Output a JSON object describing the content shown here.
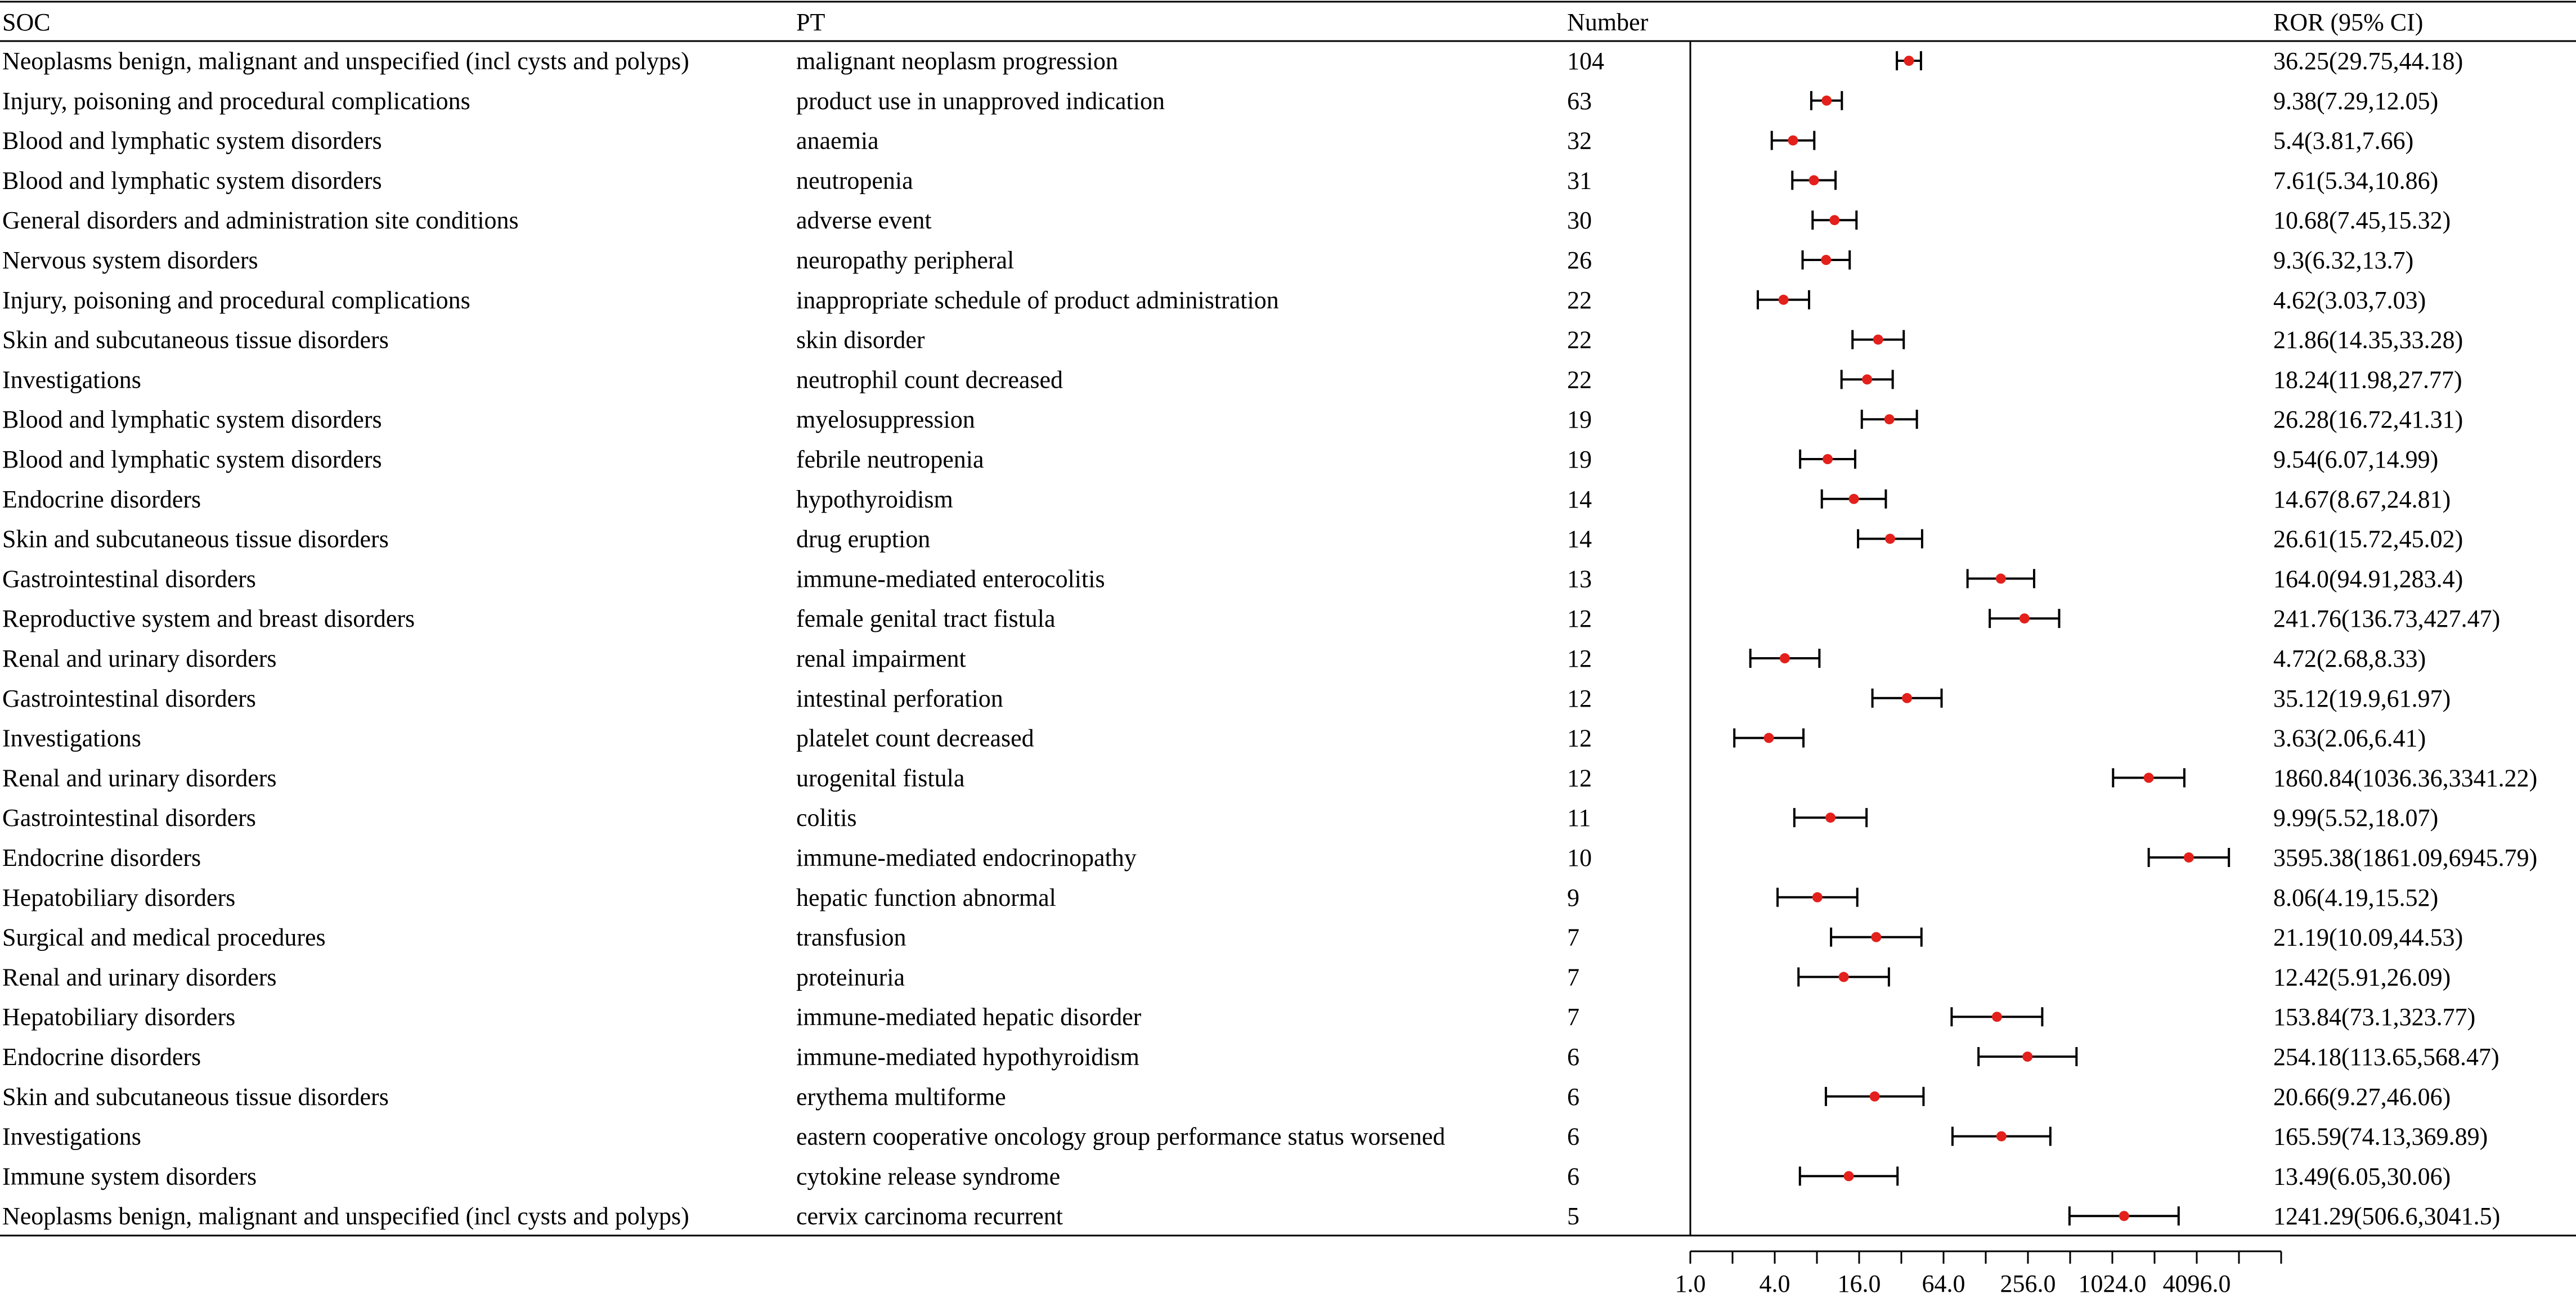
{
  "headers": {
    "soc": "SOC",
    "pt": "PT",
    "number": "Number",
    "ror": "ROR (95% CI)"
  },
  "chart_data": {
    "type": "forest",
    "x_scale": "log2",
    "xlim": [
      1,
      16384
    ],
    "x_ticks": [
      1,
      2,
      4,
      8,
      16,
      32,
      64,
      128,
      256,
      512,
      1024,
      2048,
      4096,
      8192,
      16384
    ],
    "x_tick_labels": [
      "1.0",
      "4.0",
      "16.0",
      "64.0",
      "256.0",
      "1024.0",
      "4096.0"
    ],
    "x_tick_label_values": [
      1,
      4,
      16,
      64,
      256,
      1024,
      4096
    ],
    "rows": [
      {
        "soc": "Neoplasms benign, malignant and unspecified (incl cysts and polyps)",
        "pt": "malignant neoplasm progression",
        "number": "104",
        "ror_text": "36.25(29.75,44.18)",
        "ror": 36.25,
        "lo": 29.75,
        "hi": 44.18
      },
      {
        "soc": "Injury, poisoning and procedural complications",
        "pt": "product use in unapproved indication",
        "number": "63",
        "ror_text": "9.38(7.29,12.05)",
        "ror": 9.38,
        "lo": 7.29,
        "hi": 12.05
      },
      {
        "soc": "Blood and lymphatic system disorders",
        "pt": "anaemia",
        "number": "32",
        "ror_text": "5.4(3.81,7.66)",
        "ror": 5.4,
        "lo": 3.81,
        "hi": 7.66
      },
      {
        "soc": "Blood and lymphatic system disorders",
        "pt": "neutropenia",
        "number": "31",
        "ror_text": "7.61(5.34,10.86)",
        "ror": 7.61,
        "lo": 5.34,
        "hi": 10.86
      },
      {
        "soc": "General disorders and administration site conditions",
        "pt": "adverse event",
        "number": "30",
        "ror_text": "10.68(7.45,15.32)",
        "ror": 10.68,
        "lo": 7.45,
        "hi": 15.32
      },
      {
        "soc": "Nervous system disorders",
        "pt": "neuropathy peripheral",
        "number": "26",
        "ror_text": "9.3(6.32,13.7)",
        "ror": 9.3,
        "lo": 6.32,
        "hi": 13.7
      },
      {
        "soc": "Injury, poisoning and procedural complications",
        "pt": "inappropriate schedule of product administration",
        "number": "22",
        "ror_text": "4.62(3.03,7.03)",
        "ror": 4.62,
        "lo": 3.03,
        "hi": 7.03
      },
      {
        "soc": "Skin and subcutaneous tissue disorders",
        "pt": "skin disorder",
        "number": "22",
        "ror_text": "21.86(14.35,33.28)",
        "ror": 21.86,
        "lo": 14.35,
        "hi": 33.28
      },
      {
        "soc": "Investigations",
        "pt": "neutrophil count decreased",
        "number": "22",
        "ror_text": "18.24(11.98,27.77)",
        "ror": 18.24,
        "lo": 11.98,
        "hi": 27.77
      },
      {
        "soc": "Blood and lymphatic system disorders",
        "pt": "myelosuppression",
        "number": "19",
        "ror_text": "26.28(16.72,41.31)",
        "ror": 26.28,
        "lo": 16.72,
        "hi": 41.31
      },
      {
        "soc": "Blood and lymphatic system disorders",
        "pt": "febrile neutropenia",
        "number": "19",
        "ror_text": "9.54(6.07,14.99)",
        "ror": 9.54,
        "lo": 6.07,
        "hi": 14.99
      },
      {
        "soc": "Endocrine disorders",
        "pt": "hypothyroidism",
        "number": "14",
        "ror_text": "14.67(8.67,24.81)",
        "ror": 14.67,
        "lo": 8.67,
        "hi": 24.81
      },
      {
        "soc": "Skin and subcutaneous tissue disorders",
        "pt": "drug eruption",
        "number": "14",
        "ror_text": "26.61(15.72,45.02)",
        "ror": 26.61,
        "lo": 15.72,
        "hi": 45.02
      },
      {
        "soc": "Gastrointestinal disorders",
        "pt": "immune-mediated enterocolitis",
        "number": "13",
        "ror_text": "164.0(94.91,283.4)",
        "ror": 164.0,
        "lo": 94.91,
        "hi": 283.4
      },
      {
        "soc": "Reproductive system and breast disorders",
        "pt": "female genital tract fistula",
        "number": "12",
        "ror_text": "241.76(136.73,427.47)",
        "ror": 241.76,
        "lo": 136.73,
        "hi": 427.47
      },
      {
        "soc": "Renal and urinary disorders",
        "pt": "renal impairment",
        "number": "12",
        "ror_text": "4.72(2.68,8.33)",
        "ror": 4.72,
        "lo": 2.68,
        "hi": 8.33
      },
      {
        "soc": "Gastrointestinal disorders",
        "pt": "intestinal perforation",
        "number": "12",
        "ror_text": "35.12(19.9,61.97)",
        "ror": 35.12,
        "lo": 19.9,
        "hi": 61.97
      },
      {
        "soc": "Investigations",
        "pt": "platelet count decreased",
        "number": "12",
        "ror_text": "3.63(2.06,6.41)",
        "ror": 3.63,
        "lo": 2.06,
        "hi": 6.41
      },
      {
        "soc": "Renal and urinary disorders",
        "pt": "urogenital fistula",
        "number": "12",
        "ror_text": "1860.84(1036.36,3341.22)",
        "ror": 1860.84,
        "lo": 1036.36,
        "hi": 3341.22
      },
      {
        "soc": "Gastrointestinal disorders",
        "pt": "colitis",
        "number": "11",
        "ror_text": "9.99(5.52,18.07)",
        "ror": 9.99,
        "lo": 5.52,
        "hi": 18.07
      },
      {
        "soc": "Endocrine disorders",
        "pt": "immune-mediated endocrinopathy",
        "number": "10",
        "ror_text": "3595.38(1861.09,6945.79)",
        "ror": 3595.38,
        "lo": 1861.09,
        "hi": 6945.79
      },
      {
        "soc": "Hepatobiliary disorders",
        "pt": "hepatic function abnormal",
        "number": "9",
        "ror_text": "8.06(4.19,15.52)",
        "ror": 8.06,
        "lo": 4.19,
        "hi": 15.52
      },
      {
        "soc": "Surgical and medical procedures",
        "pt": "transfusion",
        "number": "7",
        "ror_text": "21.19(10.09,44.53)",
        "ror": 21.19,
        "lo": 10.09,
        "hi": 44.53
      },
      {
        "soc": "Renal and urinary disorders",
        "pt": "proteinuria",
        "number": "7",
        "ror_text": "12.42(5.91,26.09)",
        "ror": 12.42,
        "lo": 5.91,
        "hi": 26.09
      },
      {
        "soc": "Hepatobiliary disorders",
        "pt": "immune-mediated hepatic disorder",
        "number": "7",
        "ror_text": "153.84(73.1,323.77)",
        "ror": 153.84,
        "lo": 73.1,
        "hi": 323.77
      },
      {
        "soc": "Endocrine disorders",
        "pt": "immune-mediated hypothyroidism",
        "number": "6",
        "ror_text": "254.18(113.65,568.47)",
        "ror": 254.18,
        "lo": 113.65,
        "hi": 568.47
      },
      {
        "soc": "Skin and subcutaneous tissue disorders",
        "pt": "erythema multiforme",
        "number": "6",
        "ror_text": "20.66(9.27,46.06)",
        "ror": 20.66,
        "lo": 9.27,
        "hi": 46.06
      },
      {
        "soc": "Investigations",
        "pt": "eastern cooperative oncology group performance status worsened",
        "number": "6",
        "ror_text": "165.59(74.13,369.89)",
        "ror": 165.59,
        "lo": 74.13,
        "hi": 369.89
      },
      {
        "soc": "Immune system disorders",
        "pt": "cytokine release syndrome",
        "number": "6",
        "ror_text": "13.49(6.05,30.06)",
        "ror": 13.49,
        "lo": 6.05,
        "hi": 30.06
      },
      {
        "soc": "Neoplasms benign, malignant and unspecified (incl cysts and polyps)",
        "pt": "cervix carcinoma recurrent",
        "number": "5",
        "ror_text": "1241.29(506.6,3041.5)",
        "ror": 1241.29,
        "lo": 506.6,
        "hi": 3041.5
      }
    ]
  },
  "colors": {
    "point": "#e3201b",
    "line": "#000000"
  }
}
